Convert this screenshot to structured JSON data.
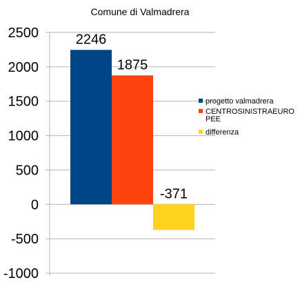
{
  "chart_data": {
    "type": "bar",
    "title": "Comune di Valmadrera",
    "xlabel": "",
    "ylabel": "",
    "ylim": [
      -1000,
      2500
    ],
    "yticks": [
      2500,
      2000,
      1500,
      1000,
      500,
      0,
      -500,
      -1000
    ],
    "grid": true,
    "legend_position": "right",
    "series": [
      {
        "name": "progetto valmadrera",
        "value": 2246,
        "label": "2246",
        "color": "#004586"
      },
      {
        "name_lines": [
          "CENTROSINISTRAEURO",
          "PEE"
        ],
        "value": 1875,
        "label": "1875",
        "color": "#ff420e"
      },
      {
        "name": "differenza",
        "value": -371,
        "label": "-371",
        "color": "#ffd320"
      }
    ]
  }
}
